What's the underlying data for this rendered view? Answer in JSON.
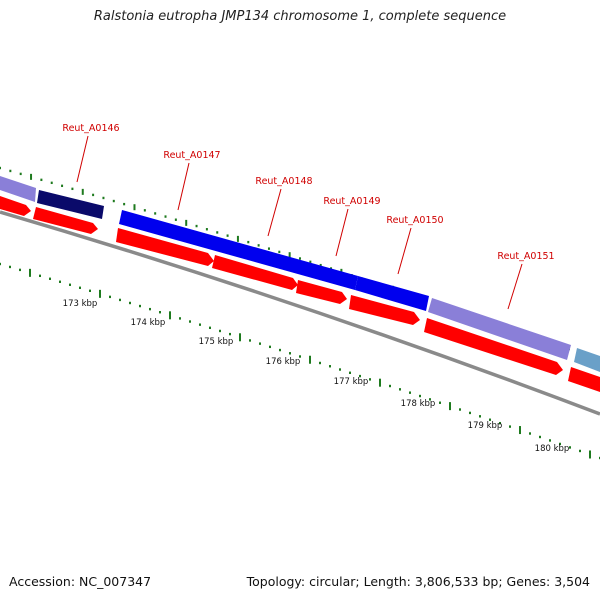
{
  "title": "Ralstonia eutropha JMP134 chromosome 1, complete sequence",
  "accession": "Accession: NC_007347",
  "summary": "Topology: circular; Length: 3,806,533 bp; Genes: 3,504",
  "colors": {
    "cds_forward_light": "#8a7fd8",
    "cds_forward_dark": "#0a0a6a",
    "cds_forward_blue": "#0000ee",
    "cds_reverse": "#ff0000",
    "backbone": "#8a8a8a",
    "tick_mark": "#1e7a1e",
    "gene_label": "#d00000",
    "teal_gene": "#6aa0c8"
  },
  "scale_ticks": [
    {
      "label": "173 kbp"
    },
    {
      "label": "174 kbp"
    },
    {
      "label": "175 kbp"
    },
    {
      "label": "176 kbp"
    },
    {
      "label": "177 kbp"
    },
    {
      "label": "178 kbp"
    },
    {
      "label": "179 kbp"
    },
    {
      "label": "180 kbp"
    }
  ],
  "gene_labels": [
    {
      "name": "Reut_A0146"
    },
    {
      "name": "Reut_A0147"
    },
    {
      "name": "Reut_A0148"
    },
    {
      "name": "Reut_A0149"
    },
    {
      "name": "Reut_A0150"
    },
    {
      "name": "Reut_A0151"
    }
  ]
}
